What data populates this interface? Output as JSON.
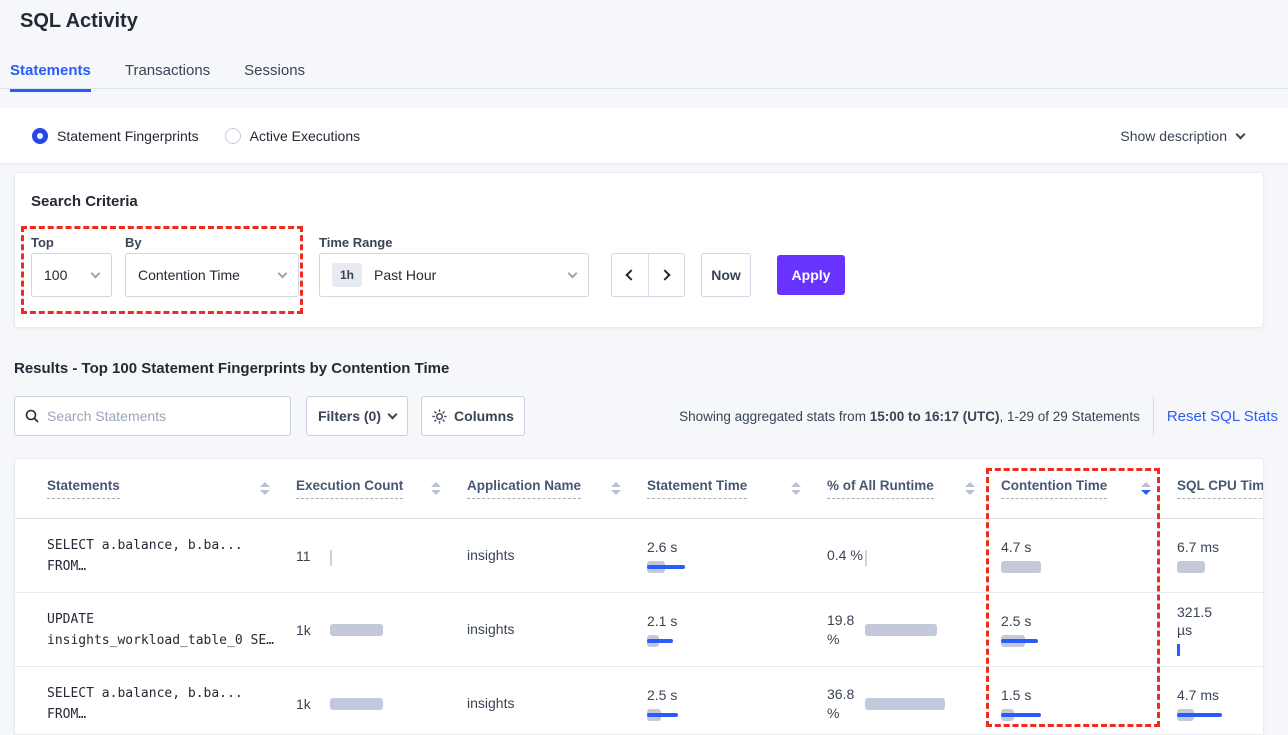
{
  "header": {
    "title": "SQL Activity"
  },
  "tabs": [
    {
      "label": "Statements",
      "active": true
    },
    {
      "label": "Transactions",
      "active": false
    },
    {
      "label": "Sessions",
      "active": false
    }
  ],
  "toggle": {
    "options": [
      {
        "label": "Statement Fingerprints",
        "selected": true
      },
      {
        "label": "Active Executions",
        "selected": false
      }
    ],
    "show_description": "Show description"
  },
  "criteria": {
    "heading": "Search Criteria",
    "top_label": "Top",
    "top_value": "100",
    "by_label": "By",
    "by_value": "Contention Time",
    "time_label": "Time Range",
    "time_badge": "1h",
    "time_value": "Past Hour",
    "now": "Now",
    "apply": "Apply"
  },
  "results": {
    "heading": "Results - Top 100 Statement Fingerprints by Contention Time",
    "search_placeholder": "Search Statements",
    "filters": "Filters (0)",
    "columns": "Columns",
    "showing_prefix": "Showing aggregated stats from ",
    "showing_range": "15:00 to 16:17 (UTC)",
    "showing_suffix": ", 1-29 of 29 Statements",
    "reset": "Reset SQL Stats"
  },
  "table": {
    "columns": [
      {
        "label": "Statements",
        "sort": "none"
      },
      {
        "label": "Execution Count",
        "sort": "none"
      },
      {
        "label": "Application Name",
        "sort": "none"
      },
      {
        "label": "Statement Time",
        "sort": "none"
      },
      {
        "label": "% of All Runtime",
        "sort": "none"
      },
      {
        "label": "Contention Time",
        "sort": "desc"
      },
      {
        "label": "SQL CPU Time",
        "sort": "hidden"
      }
    ],
    "rows": [
      {
        "statement_lines": [
          "SELECT a.balance, b.ba...",
          "FROM…"
        ],
        "execution": {
          "value": "11",
          "bar": {
            "tick": "gray"
          }
        },
        "app": "insights",
        "statement_time": {
          "value": "2.6 s",
          "bar": {
            "gray": 18,
            "blue": 38
          }
        },
        "runtime": {
          "value": "0.4 %",
          "bar": {
            "tick": "gray"
          }
        },
        "contention": {
          "value": "4.7 s",
          "bar": {
            "gray": 40,
            "blue": 0
          }
        },
        "cpu": {
          "value": "6.7 ms",
          "bar": {
            "gray": 28,
            "blue": 0
          }
        }
      },
      {
        "statement_lines": [
          "UPDATE",
          "insights_workload_table_0 SE…"
        ],
        "execution": {
          "value": "1k",
          "bar": {
            "gray": 53,
            "blue": 0
          }
        },
        "app": "insights",
        "statement_time": {
          "value": "2.1 s",
          "bar": {
            "gray": 12,
            "blue": 26
          }
        },
        "runtime": {
          "value": "19.8 %",
          "bar": {
            "gray": 72,
            "blue": 0
          }
        },
        "contention": {
          "value": "2.5 s",
          "bar": {
            "gray": 24,
            "blue": 37
          }
        },
        "cpu": {
          "value": "321.5 µs",
          "bar": {
            "tick": "blue"
          }
        }
      },
      {
        "statement_lines": [
          "SELECT a.balance, b.ba...",
          "FROM…"
        ],
        "execution": {
          "value": "1k",
          "bar": {
            "gray": 53,
            "blue": 0
          }
        },
        "app": "insights",
        "statement_time": {
          "value": "2.5 s",
          "bar": {
            "gray": 14,
            "blue": 31
          }
        },
        "runtime": {
          "value": "36.8 %",
          "bar": {
            "gray": 80,
            "blue": 0
          }
        },
        "contention": {
          "value": "1.5 s",
          "bar": {
            "gray": 13,
            "blue": 40
          }
        },
        "cpu": {
          "value": "4.7 ms",
          "bar": {
            "gray": 17,
            "blue": 45
          }
        }
      }
    ]
  },
  "icons": {
    "search": "magnifier",
    "gear": "gear",
    "chevron_down": "chevron-down",
    "chevron_left": "chevron-left",
    "chevron_right": "chevron-right",
    "sort": "caret-up-down"
  },
  "colors": {
    "accent_blue": "#2a5cfa",
    "apply_purple": "#6933ff",
    "annotation_red": "#ee2b1c",
    "bar_gray": "#c3c9db",
    "page_bg": "#f5f7fa"
  }
}
